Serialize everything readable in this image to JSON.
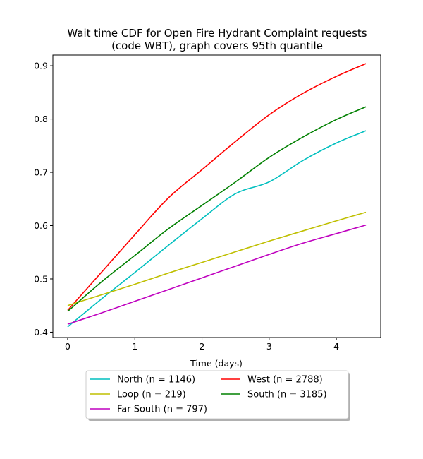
{
  "chart_data": {
    "type": "line",
    "title_line1": "Wait time CDF for Open Fire Hydrant Complaint  requests",
    "title_line2": "(code WBT), graph covers 95th quantile",
    "xlabel": "Time (days)",
    "ylabel": "",
    "xlim": [
      -0.22,
      4.66
    ],
    "ylim": [
      0.39,
      0.92
    ],
    "xticks": [
      0,
      1,
      2,
      3,
      4
    ],
    "yticks": [
      0.4,
      0.5,
      0.6,
      0.7,
      0.8,
      0.9
    ],
    "xtick_labels": [
      "0",
      "1",
      "2",
      "3",
      "4"
    ],
    "ytick_labels": [
      "0.4",
      "0.5",
      "0.6",
      "0.7",
      "0.8",
      "0.9"
    ],
    "grid": false,
    "legend_position": "below plot, two columns",
    "x": [
      0,
      0.5,
      1.0,
      1.5,
      2.0,
      2.5,
      3.0,
      3.5,
      4.0,
      4.44
    ],
    "series": [
      {
        "name": "North (n = 1146)",
        "color": "#00bfbf",
        "values": [
          0.41,
          0.462,
          0.512,
          0.563,
          0.613,
          0.66,
          0.682,
          0.722,
          0.755,
          0.778
        ]
      },
      {
        "name": "West (n = 2788)",
        "color": "#ff0000",
        "values": [
          0.441,
          0.512,
          0.583,
          0.652,
          0.705,
          0.758,
          0.808,
          0.848,
          0.88,
          0.904
        ]
      },
      {
        "name": "Loop (n = 219)",
        "color": "#bfbf00",
        "values": [
          0.45,
          0.47,
          0.49,
          0.511,
          0.531,
          0.551,
          0.571,
          0.59,
          0.609,
          0.625
        ]
      },
      {
        "name": "South (n = 3185)",
        "color": "#008000",
        "values": [
          0.439,
          0.494,
          0.544,
          0.594,
          0.638,
          0.682,
          0.728,
          0.766,
          0.799,
          0.823
        ]
      },
      {
        "name": "Far South (n = 797)",
        "color": "#bf00bf",
        "values": [
          0.415,
          0.436,
          0.458,
          0.48,
          0.502,
          0.524,
          0.546,
          0.567,
          0.585,
          0.601
        ]
      }
    ]
  }
}
